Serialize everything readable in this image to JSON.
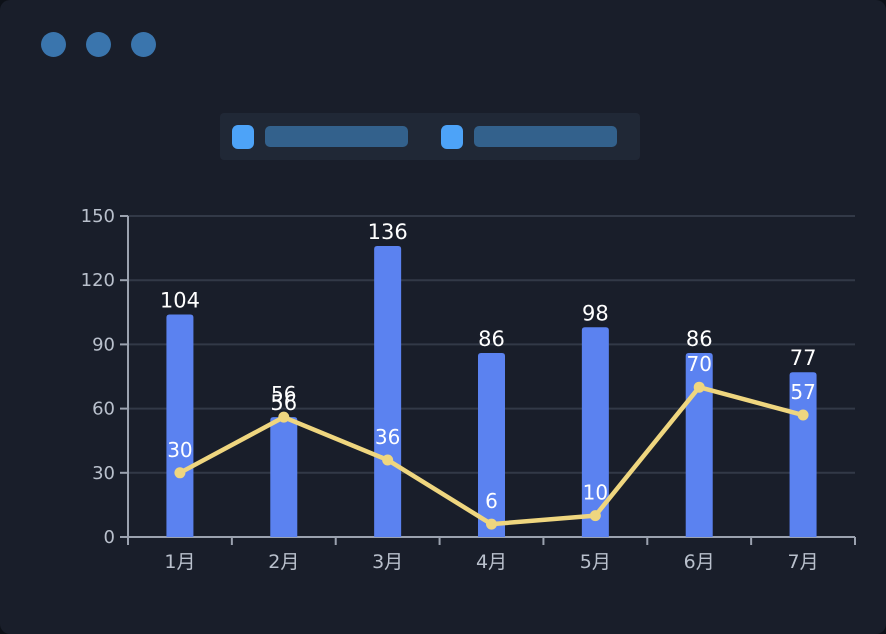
{
  "window": {
    "background": "#191e2a",
    "controls": {
      "count": 3,
      "color": "#3a75ad"
    }
  },
  "legend": {
    "panel_color": "#202836",
    "items": [
      {
        "name": "bar-series",
        "swatch_color": "#4da3f8",
        "placeholder_color": "#33618c",
        "label_text": ""
      },
      {
        "name": "line-series",
        "swatch_color": "#4da3f8",
        "placeholder_color": "#33618c",
        "label_text": ""
      }
    ]
  },
  "chart_data": {
    "type": "bar+line combo",
    "categories": [
      "1月",
      "2月",
      "3月",
      "4月",
      "5月",
      "6月",
      "7月"
    ],
    "series": [
      {
        "name": "bar-series",
        "type": "bar",
        "color": "#5b82f0",
        "values": [
          104,
          56,
          136,
          86,
          98,
          86,
          77
        ]
      },
      {
        "name": "line-series",
        "type": "line",
        "color": "#efd67f",
        "values": [
          30,
          56,
          36,
          6,
          10,
          70,
          57
        ]
      }
    ],
    "title": "",
    "xlabel": "",
    "ylabel": "",
    "ylim": [
      0,
      150
    ],
    "ystep": 30,
    "yticks": [
      "0",
      "30",
      "60",
      "90",
      "120",
      "150"
    ],
    "grid": true,
    "legend_position": "top",
    "value_labels_shown": true,
    "colors": {
      "grid_line": "#323947",
      "axis_line": "#9ba2af",
      "tick_label": "#b9c0cc",
      "value_label": "#ffffff"
    }
  }
}
